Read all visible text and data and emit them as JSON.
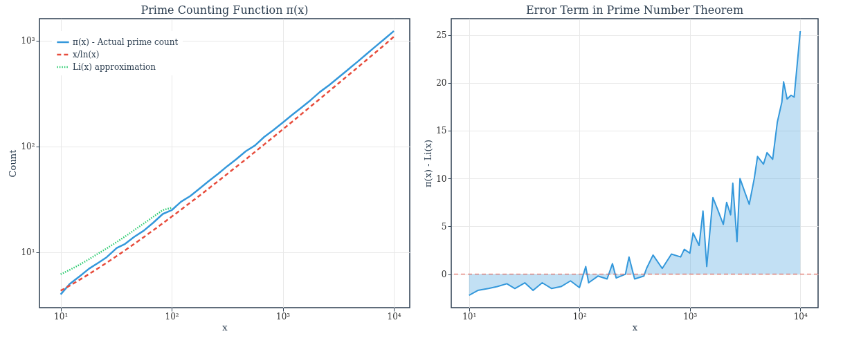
{
  "chart_data": [
    {
      "type": "line",
      "title": "Prime Counting Function π(x)",
      "xlabel": "x",
      "ylabel": "Count",
      "log": "xy",
      "grid": true,
      "legend": "top left",
      "xlim": [
        6.44,
        13900
      ],
      "ylim": [
        3.0,
        1607
      ],
      "xticks": [
        {
          "value": 10,
          "label": "10¹"
        },
        {
          "value": 100,
          "label": "10²"
        },
        {
          "value": 1000,
          "label": "10³"
        },
        {
          "value": 10000,
          "label": "10⁴"
        }
      ],
      "yticks": [
        {
          "value": 10,
          "label": "10¹"
        },
        {
          "value": 100,
          "label": "10²"
        },
        {
          "value": 1000,
          "label": "10³"
        }
      ],
      "x": [
        10,
        12,
        15,
        18,
        22,
        26,
        32,
        38,
        46,
        56,
        68,
        83,
        100,
        121,
        147,
        178,
        215,
        261,
        316,
        383,
        464,
        562,
        681,
        825,
        1000,
        1212,
        1468,
        1778,
        2154,
        2610,
        3162,
        3831,
        4642,
        5623,
        6813,
        8254,
        10000
      ],
      "series": [
        {
          "name": "π(x) - Actual prime count",
          "color": "#3498db",
          "line_style": "solid",
          "values": [
            4,
            5,
            6,
            7,
            8,
            9,
            11,
            12,
            14,
            16,
            19,
            23,
            25,
            30,
            34,
            40,
            47,
            55,
            65,
            76,
            90,
            102,
            123,
            143,
            168,
            198,
            232,
            273,
            326,
            378,
            446,
            527,
            622,
            739,
            876,
            1036,
            1229
          ]
        },
        {
          "name": "x/ln(x)",
          "color": "#e74c3c",
          "line_style": "dashed",
          "values": [
            4.34,
            4.83,
            5.54,
            6.23,
            7.12,
            7.98,
            9.23,
            10.45,
            12.01,
            13.91,
            16.12,
            18.78,
            21.7,
            25.2,
            29.5,
            34.3,
            40.0,
            46.9,
            54.9,
            64.4,
            75.5,
            88.8,
            104.4,
            122.8,
            144.8,
            170.6,
            201.4,
            237.9,
            280.6,
            331.6,
            392.5,
            464.1,
            548.4,
            649.8,
            769.2,
            910.5,
            1085.7
          ]
        },
        {
          "name": "Li(x) approximation",
          "color": "#2ecc71",
          "line_style": "dotted",
          "values": [
            6.2,
            6.8,
            7.7,
            8.6,
            9.8,
            10.9,
            12.5,
            14.1,
            16.2,
            18.7,
            21.6,
            25.0,
            26.4,
            null,
            null,
            null,
            null,
            null,
            null,
            null,
            null,
            null,
            null,
            null,
            null,
            null,
            null,
            null,
            null,
            null,
            null,
            null,
            null,
            null,
            null,
            null,
            null
          ]
        }
      ]
    },
    {
      "type": "area",
      "title": "Error Term in Prime Number Theorem",
      "xlabel": "x",
      "ylabel": "π(x) - Li(x)",
      "log": "x",
      "grid": true,
      "xlim": [
        6.9,
        14500
      ],
      "ylim": [
        -3.5,
        26.7
      ],
      "xticks": [
        {
          "value": 10,
          "label": "10¹"
        },
        {
          "value": 100,
          "label": "10²"
        },
        {
          "value": 1000,
          "label": "10³"
        },
        {
          "value": 10000,
          "label": "10⁴"
        }
      ],
      "yticks": [
        0,
        5,
        10,
        15,
        20,
        25
      ],
      "ref_lines": [
        {
          "axis": "y",
          "value": 0,
          "color": "#e74c3c",
          "line_style": "dashed"
        }
      ],
      "series": [
        {
          "color": "#3498db",
          "x": [
            10,
            12,
            15,
            18,
            22,
            26,
            32,
            38,
            46,
            56,
            68,
            83,
            100,
            114,
            121,
            147,
            178,
            199,
            215,
            261,
            281,
            316,
            383,
            405,
            464,
            562,
            681,
            825,
            890,
            1000,
            1069,
            1212,
            1315,
            1422,
            1618,
            1778,
            2009,
            2154,
            2340,
            2449,
            2673,
            2844,
            3162,
            3450,
            3831,
            4100,
            4642,
            5000,
            5623,
            6200,
            6813,
            7063,
            7600,
            8254,
            8800,
            10000
          ],
          "values": [
            -2.2,
            -1.7,
            -1.5,
            -1.3,
            -1.0,
            -1.5,
            -0.9,
            -1.7,
            -0.9,
            -1.5,
            -1.3,
            -0.7,
            -1.4,
            0.8,
            -0.9,
            -0.2,
            -0.5,
            1.1,
            -0.4,
            0,
            1.8,
            -0.5,
            -0.2,
            0.6,
            2.0,
            0.6,
            2.1,
            1.8,
            2.6,
            2.2,
            4.3,
            3.0,
            6.6,
            0.8,
            8.0,
            6.8,
            5.2,
            7.5,
            6.2,
            9.5,
            3.4,
            10.0,
            8.5,
            7.3,
            10.0,
            12.3,
            11.5,
            12.7,
            12.0,
            15.9,
            18.0,
            20.1,
            18.3,
            18.7,
            18.5,
            25.4
          ]
        }
      ]
    }
  ]
}
